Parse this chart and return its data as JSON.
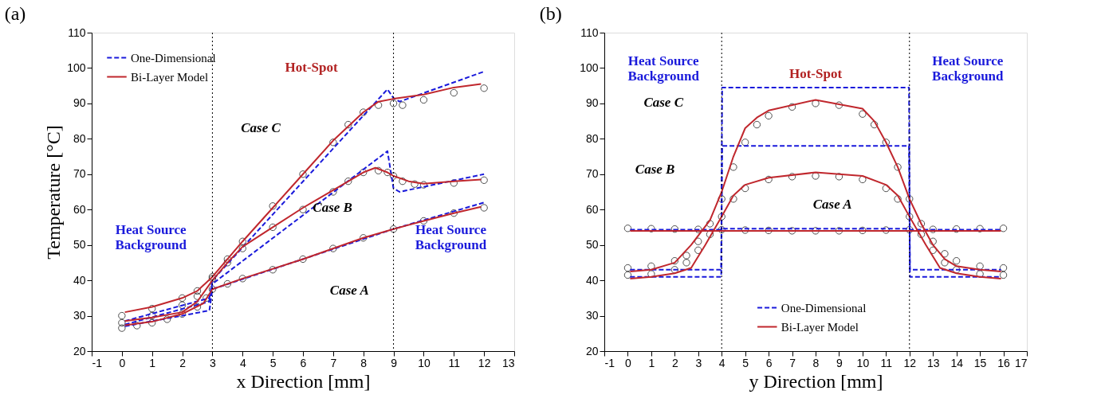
{
  "chart_data": [
    {
      "type": "line",
      "title": "(a)",
      "xlabel": "x Direction [mm]",
      "ylabel": "Temperature [°C]",
      "xlim": [
        -1,
        13
      ],
      "ylim": [
        20,
        110
      ],
      "xticks": [
        -1,
        0,
        1,
        2,
        3,
        4,
        5,
        6,
        7,
        8,
        9,
        10,
        11,
        12,
        13
      ],
      "yticks": [
        20,
        30,
        40,
        50,
        60,
        70,
        80,
        90,
        100,
        110
      ],
      "legend": "top left",
      "ref_lines": [
        {
          "axis": "x",
          "value": 3,
          "color": "#000000",
          "line_style": "dotted"
        },
        {
          "axis": "x",
          "value": 9,
          "color": "#000000",
          "line_style": "dotted"
        }
      ],
      "annotations": [
        "Hot-Spot",
        "Heat Source\nBackground",
        "Heat Source\nBackground",
        "Case C",
        "Case B",
        "Case A"
      ],
      "series": [
        {
          "type": "scatter",
          "marker": "circle",
          "color": "#000000",
          "x": [
            0,
            0.5,
            1,
            1.5,
            2,
            2.5,
            2.8,
            3,
            3.5,
            4,
            5,
            6,
            7,
            8,
            9,
            10,
            11,
            12
          ],
          "values": [
            26.5,
            27.2,
            28,
            29,
            30.5,
            32.5,
            35,
            37.5,
            39,
            40.5,
            43,
            46,
            49,
            52,
            54.5,
            56.8,
            59,
            60.5
          ]
        },
        {
          "type": "scatter",
          "marker": "circle",
          "color": "#000000",
          "x": [
            0,
            1,
            2,
            2.5,
            3,
            3.5,
            4,
            5,
            6,
            7,
            7.5,
            8,
            8.5,
            8.8,
            9,
            9.3,
            9.7,
            10,
            11,
            12
          ],
          "values": [
            28,
            30,
            33,
            35.5,
            40.5,
            45,
            49,
            55,
            60,
            65,
            68,
            70.5,
            71,
            70.5,
            69.5,
            68,
            67.2,
            67,
            67.5,
            68.3
          ]
        },
        {
          "type": "scatter",
          "marker": "circle",
          "color": "#000000",
          "x": [
            0,
            1,
            2,
            2.5,
            3,
            3.5,
            4,
            5,
            6,
            7,
            7.5,
            8,
            8.5,
            9,
            9.3,
            10,
            11,
            12
          ],
          "values": [
            30,
            32,
            35,
            37,
            41,
            46,
            51,
            61,
            70,
            79,
            84,
            87.5,
            89.5,
            90,
            89.5,
            91,
            93,
            94.3
          ]
        },
        {
          "name": "One-Dimensional",
          "type": "line",
          "line_style": "dashed",
          "color": "#1a1adb",
          "x": [
            0.1,
            1,
            2,
            2.9,
            3,
            6,
            9,
            12
          ],
          "values": [
            27,
            28.5,
            30,
            31.5,
            37.5,
            46,
            54.5,
            62
          ]
        },
        {
          "type": "line",
          "line_style": "dashed",
          "color": "#1a1adb",
          "x": [
            0.1,
            2.9,
            3,
            8.8,
            9,
            9.2,
            12
          ],
          "values": [
            27.5,
            34,
            39,
            76.5,
            66,
            65,
            70
          ]
        },
        {
          "type": "line",
          "line_style": "dashed",
          "color": "#1a1adb",
          "x": [
            0.1,
            2.9,
            3,
            8.8,
            9,
            9.2,
            12
          ],
          "values": [
            28.5,
            35,
            40,
            94,
            91.5,
            90.5,
            99
          ]
        },
        {
          "name": "Bi-Layer Model",
          "type": "line",
          "line_style": "solid",
          "color": "#c0272d",
          "x": [
            0.1,
            1,
            2,
            2.7,
            3,
            4,
            6,
            8,
            9,
            10,
            11,
            11.9
          ],
          "values": [
            27.3,
            28.3,
            30.5,
            33.5,
            37.5,
            40.5,
            46,
            52,
            54.5,
            56.8,
            59,
            60.8
          ]
        },
        {
          "type": "line",
          "line_style": "solid",
          "color": "#c0272d",
          "x": [
            0.1,
            1,
            2,
            2.5,
            3,
            3.5,
            4,
            5,
            6,
            7,
            8,
            8.4,
            8.8,
            9,
            9.5,
            10,
            11,
            11.9
          ],
          "values": [
            28.5,
            29.5,
            31,
            34,
            40,
            45,
            49.5,
            55,
            60.5,
            65.5,
            70.5,
            71.8,
            70.5,
            69.5,
            68,
            67.3,
            68,
            68.5
          ]
        },
        {
          "type": "line",
          "line_style": "solid",
          "color": "#c0272d",
          "x": [
            0.1,
            1,
            2,
            2.5,
            3,
            4,
            5,
            6,
            7,
            8,
            8.5,
            9,
            10,
            11,
            11.9
          ],
          "values": [
            31,
            32.5,
            35,
            37,
            41,
            51,
            60.5,
            70,
            79.5,
            87.5,
            90.5,
            91.3,
            92.5,
            94.5,
            95.5
          ]
        }
      ]
    },
    {
      "type": "line",
      "title": "(b)",
      "xlabel": "y Direction [mm]",
      "xlim": [
        -1,
        17
      ],
      "ylim": [
        20,
        110
      ],
      "xticks": [
        -1,
        0,
        1,
        2,
        3,
        4,
        5,
        6,
        7,
        8,
        9,
        10,
        11,
        12,
        13,
        14,
        15,
        16,
        17
      ],
      "yticks": [
        20,
        30,
        40,
        50,
        60,
        70,
        80,
        90,
        100,
        110
      ],
      "legend": "bottom",
      "ref_lines": [
        {
          "axis": "x",
          "value": 4,
          "color": "#000000",
          "line_style": "dotted"
        },
        {
          "axis": "x",
          "value": 12,
          "color": "#000000",
          "line_style": "dotted"
        }
      ],
      "annotations": [
        "Heat Source\nBackground",
        "Hot-Spot",
        "Heat Source\nBackground",
        "Case C",
        "Case B",
        "Case A"
      ],
      "series": [
        {
          "type": "scatter",
          "marker": "circle",
          "color": "#000000",
          "x": [
            0,
            1,
            2,
            3,
            4,
            5,
            6,
            7,
            8,
            9,
            10,
            11,
            12,
            13,
            14,
            15,
            16
          ],
          "values": [
            54.7,
            54.6,
            54.5,
            54.4,
            54.3,
            54.2,
            54.1,
            54,
            54,
            54,
            54.1,
            54.2,
            54.3,
            54.4,
            54.5,
            54.6,
            54.7
          ]
        },
        {
          "type": "scatter",
          "marker": "circle",
          "color": "#000000",
          "x": [
            0,
            1,
            2,
            2.5,
            3,
            3.5,
            4,
            4.5,
            5,
            6,
            7,
            8,
            9,
            10,
            11,
            11.5,
            12,
            12.5,
            13,
            13.5,
            14,
            15,
            16
          ],
          "values": [
            41.5,
            41.8,
            43,
            45,
            48.5,
            53,
            58,
            63,
            66,
            68.5,
            69.3,
            69.5,
            69.3,
            68.5,
            66,
            63,
            58,
            53,
            48.5,
            45,
            43,
            41.8,
            41.5
          ]
        },
        {
          "type": "scatter",
          "marker": "circle",
          "color": "#000000",
          "x": [
            0,
            1,
            2,
            2.5,
            3,
            3.5,
            4,
            4.5,
            5,
            5.5,
            6,
            7,
            8,
            9,
            10,
            10.5,
            11,
            11.5,
            12,
            12.5,
            13,
            13.5,
            14,
            15,
            16
          ],
          "values": [
            43.5,
            44,
            45.5,
            47,
            51,
            56,
            63,
            72,
            79,
            84,
            86.5,
            89,
            90,
            89.5,
            87,
            84,
            79,
            72,
            63,
            56,
            51,
            47.5,
            45.5,
            44,
            43.5
          ]
        },
        {
          "name": "One-Dimensional",
          "type": "line",
          "line_style": "dashed",
          "color": "#1a1adb",
          "x": [
            0.1,
            3.98,
            4.02,
            11.98,
            12.02,
            15.9
          ],
          "values": [
            54.3,
            54.3,
            54.6,
            54.6,
            54.3,
            54.3
          ]
        },
        {
          "type": "line",
          "line_style": "dashed",
          "color": "#1a1adb",
          "x": [
            0.1,
            3.98,
            4.02,
            11.98,
            12.02,
            15.9
          ],
          "values": [
            41,
            41,
            78,
            78,
            41,
            41
          ]
        },
        {
          "type": "line",
          "line_style": "dashed",
          "color": "#1a1adb",
          "x": [
            0.1,
            3.98,
            4.02,
            11.98,
            12.02,
            15.9
          ],
          "values": [
            43,
            43,
            94.5,
            94.5,
            43,
            43
          ]
        },
        {
          "name": "Bi-Layer Model",
          "type": "line",
          "line_style": "solid",
          "color": "#c0272d",
          "x": [
            0.1,
            15.9
          ],
          "values": [
            54,
            54
          ]
        },
        {
          "type": "line",
          "line_style": "solid",
          "color": "#c0272d",
          "x": [
            0.1,
            1,
            2,
            2.7,
            3.3,
            4,
            4.5,
            5,
            6,
            8,
            10,
            11,
            11.5,
            12,
            12.7,
            13.3,
            14,
            15,
            15.9
          ],
          "values": [
            40.5,
            41,
            42,
            43.5,
            50,
            58,
            64,
            67,
            69,
            70.5,
            69.5,
            67,
            64,
            58,
            50,
            43.5,
            42,
            41,
            40.5
          ]
        },
        {
          "type": "line",
          "line_style": "solid",
          "color": "#c0272d",
          "x": [
            0.1,
            1,
            2,
            2.7,
            3.5,
            4,
            4.5,
            5,
            5.5,
            6,
            8,
            10,
            10.5,
            11,
            11.5,
            12,
            12.5,
            13,
            13.5,
            14,
            15,
            15.9
          ],
          "values": [
            42.5,
            43,
            45,
            50,
            57,
            65,
            75,
            83,
            86,
            88,
            91,
            88.5,
            85,
            79,
            72,
            63,
            56,
            50,
            46,
            44,
            43,
            42.5
          ]
        }
      ]
    }
  ]
}
